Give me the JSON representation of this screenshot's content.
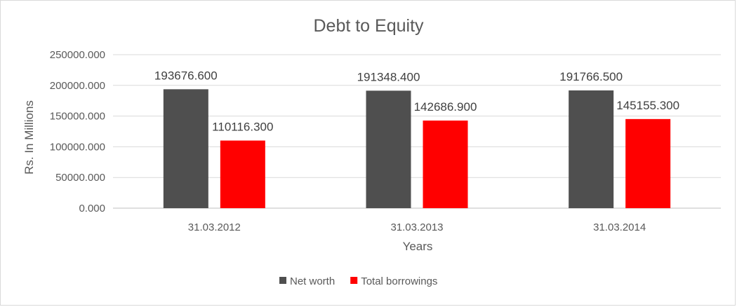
{
  "chart_data": {
    "type": "bar",
    "title": "Debt to Equity",
    "xlabel": "Years",
    "ylabel": "Rs. In Millions",
    "categories": [
      "31.03.2012",
      "31.03.2013",
      "31.03.2014"
    ],
    "series": [
      {
        "name": "Net worth",
        "color": "#4f4f4f",
        "values": [
          193676.6,
          191348.4,
          191766.5
        ],
        "value_labels": [
          "193676.600",
          "191348.400",
          "191766.500"
        ]
      },
      {
        "name": "Total borrowings",
        "color": "#ff0000",
        "values": [
          110116.3,
          142686.9,
          145155.3
        ],
        "value_labels": [
          "110116.300",
          "142686.900",
          "145155.300"
        ]
      }
    ],
    "ylim": [
      0,
      250000
    ],
    "yticks": [
      0,
      50000,
      100000,
      150000,
      200000,
      250000
    ],
    "ytick_labels": [
      "0.000",
      "50000.000",
      "100000.000",
      "150000.000",
      "200000.000",
      "250000.000"
    ],
    "grid": true,
    "legend_position": "bottom"
  }
}
